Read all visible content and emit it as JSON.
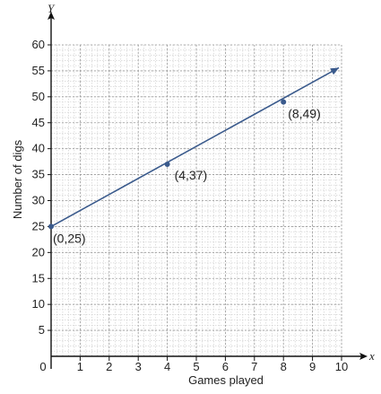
{
  "chart_data": {
    "type": "line",
    "xlabel": "Games played",
    "ylabel": "Number of digs",
    "x_axis_letter": "x",
    "y_axis_letter": "Y",
    "xlim": [
      0,
      10
    ],
    "ylim": [
      0,
      60
    ],
    "x_ticks": [
      0,
      1,
      2,
      3,
      4,
      5,
      6,
      7,
      8,
      9,
      10
    ],
    "y_ticks": [
      5,
      10,
      15,
      20,
      25,
      30,
      35,
      40,
      45,
      50,
      55,
      60
    ],
    "grid": true,
    "series": [
      {
        "x": [
          0,
          4,
          8
        ],
        "y": [
          25,
          37,
          49
        ],
        "labels": [
          "(0,25)",
          "(4,37)",
          "(8,49)"
        ],
        "line_extends_to_x": 10,
        "color": "#3a5a8c"
      }
    ]
  }
}
